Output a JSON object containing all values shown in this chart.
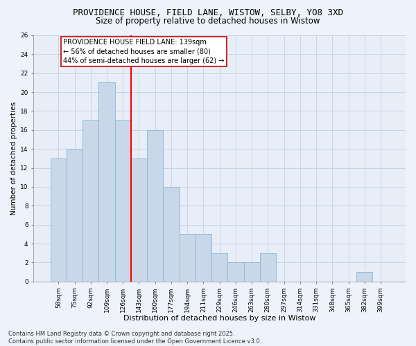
{
  "title_line1": "PROVIDENCE HOUSE, FIELD LANE, WISTOW, SELBY, YO8 3XD",
  "title_line2": "Size of property relative to detached houses in Wistow",
  "xlabel": "Distribution of detached houses by size in Wistow",
  "ylabel": "Number of detached properties",
  "bar_labels": [
    "58sqm",
    "75sqm",
    "92sqm",
    "109sqm",
    "126sqm",
    "143sqm",
    "160sqm",
    "177sqm",
    "194sqm",
    "211sqm",
    "229sqm",
    "246sqm",
    "263sqm",
    "280sqm",
    "297sqm",
    "314sqm",
    "331sqm",
    "348sqm",
    "365sqm",
    "382sqm",
    "399sqm"
  ],
  "bar_values": [
    13,
    14,
    17,
    21,
    17,
    13,
    16,
    10,
    5,
    5,
    3,
    2,
    2,
    3,
    0,
    0,
    0,
    0,
    0,
    1,
    0
  ],
  "bar_color": "#c8d8e8",
  "bar_edge_color": "#8ab4d4",
  "red_line_index": 5,
  "annotation_text": "PROVIDENCE HOUSE FIELD LANE: 139sqm\n← 56% of detached houses are smaller (80)\n44% of semi-detached houses are larger (62) →",
  "annotation_box_color": "#ffffff",
  "annotation_box_edge": "#cc0000",
  "ylim": [
    0,
    26
  ],
  "yticks": [
    0,
    2,
    4,
    6,
    8,
    10,
    12,
    14,
    16,
    18,
    20,
    22,
    24,
    26
  ],
  "grid_color": "#c8d4e4",
  "background_color": "#e8eef8",
  "fig_background_color": "#eef2fa",
  "footer_text": "Contains HM Land Registry data © Crown copyright and database right 2025.\nContains public sector information licensed under the Open Government Licence v3.0.",
  "title_fontsize": 9,
  "subtitle_fontsize": 8.5,
  "tick_fontsize": 6.5,
  "xlabel_fontsize": 8,
  "ylabel_fontsize": 7.5,
  "annotation_fontsize": 7,
  "footer_fontsize": 6
}
